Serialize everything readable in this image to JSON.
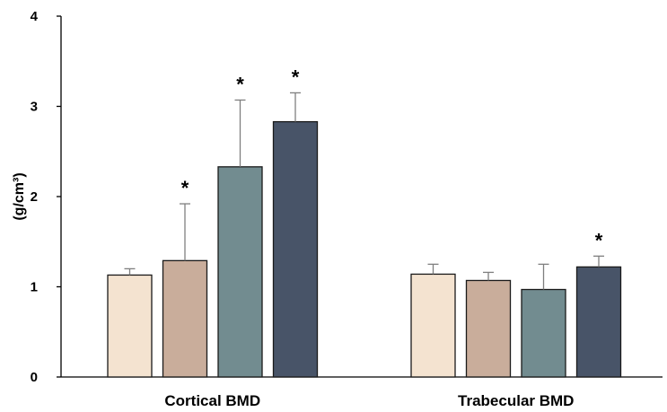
{
  "chart_data": {
    "type": "bar",
    "title": "",
    "xlabel": "",
    "ylabel": "(g/cm³)",
    "ylim": [
      0,
      4
    ],
    "y_ticks": [
      "0",
      "1",
      "2",
      "3",
      "4"
    ],
    "grid": false,
    "legend": "none",
    "categories": [
      "Cortical BMD",
      "Trabecular BMD"
    ],
    "series": [
      {
        "color": "#f4e3d0",
        "values": [
          1.13,
          1.14
        ],
        "errors": [
          0.07,
          0.11
        ],
        "significant": [
          false,
          false
        ]
      },
      {
        "color": "#c9ad9b",
        "values": [
          1.29,
          1.07
        ],
        "errors": [
          0.63,
          0.09
        ],
        "significant": [
          true,
          false
        ]
      },
      {
        "color": "#728c90",
        "values": [
          2.33,
          0.97
        ],
        "errors": [
          0.74,
          0.28
        ],
        "significant": [
          true,
          false
        ]
      },
      {
        "color": "#485468",
        "values": [
          2.83,
          1.22
        ],
        "errors": [
          0.32,
          0.12
        ],
        "significant": [
          true,
          true
        ]
      }
    ],
    "significance_marker": "*"
  }
}
